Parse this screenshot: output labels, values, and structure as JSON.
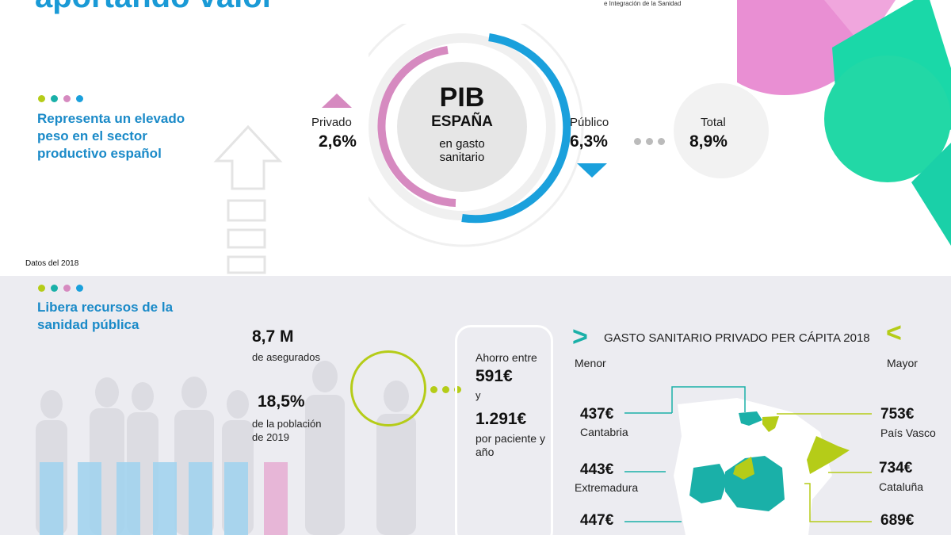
{
  "header": {
    "title": "aportando valor",
    "logo_text": "e Integración de la Sanidad"
  },
  "colors": {
    "blue": "#1a9ad6",
    "teal": "#1ab0a8",
    "lime": "#b5cc18",
    "pink": "#d68ac0"
  },
  "section1": {
    "heading": "Representa un elevado peso en el sector productivo español",
    "footnote": "Datos del 2018"
  },
  "pib": {
    "title": "PIB",
    "country": "ESPAÑA",
    "subtitle": "en gasto sanitario",
    "privado": {
      "label": "Privado",
      "value": "2,6%"
    },
    "publico": {
      "label": "Público",
      "value": "6,3%"
    },
    "total": {
      "label": "Total",
      "value": "8,9%"
    }
  },
  "section2": {
    "heading": "Libera recursos de la sanidad pública",
    "asegurados": {
      "value": "8,7 M",
      "label": "de asegurados"
    },
    "poblacion": {
      "value": "18,5%",
      "label": "de la población de 2019"
    },
    "ahorro": {
      "intro": "Ahorro entre",
      "min": "591€",
      "and": "y",
      "max": "1.291€",
      "label": "por paciente y año"
    }
  },
  "map": {
    "title": "GASTO SANITARIO PRIVADO PER CÁPITA 2018",
    "low_label": "Menor",
    "high_label": "Mayor",
    "left": [
      {
        "value": "437€",
        "region": "Cantabria"
      },
      {
        "value": "443€",
        "region": "Extremadura"
      },
      {
        "value": "447€",
        "region": ""
      }
    ],
    "right": [
      {
        "value": "753€",
        "region": "País Vasco"
      },
      {
        "value": "734€",
        "region": "Cataluña"
      },
      {
        "value": "689€",
        "region": ""
      }
    ]
  }
}
